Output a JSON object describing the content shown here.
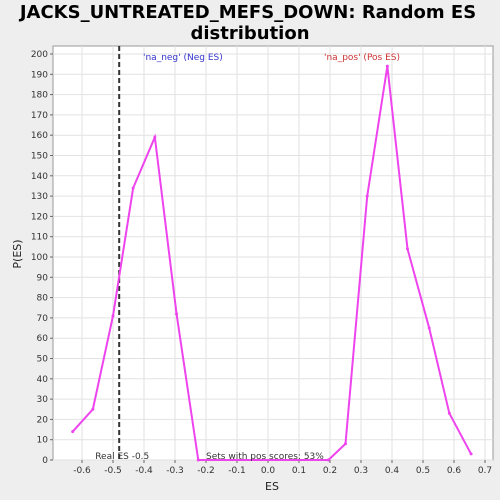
{
  "chart_data": {
    "type": "line",
    "title_line1": "JACKS_UNTREATED_MEFS_DOWN: Random ES",
    "title_line2": "distribution",
    "xlabel": "ES",
    "ylabel": "P(ES)",
    "xlim": [
      -0.7,
      0.7
    ],
    "ylim": [
      0,
      205
    ],
    "x_ticks": [
      -0.6,
      -0.5,
      -0.4,
      -0.3,
      -0.2,
      -0.1,
      0.0,
      0.1,
      0.2,
      0.3,
      0.4,
      0.5,
      0.6,
      0.7
    ],
    "y_ticks": [
      0,
      10,
      20,
      30,
      40,
      50,
      60,
      70,
      80,
      90,
      100,
      110,
      120,
      130,
      140,
      150,
      160,
      170,
      180,
      190,
      200
    ],
    "series_color": "#ee44ee",
    "series": [
      {
        "x": [
          -0.63,
          -0.565,
          -0.5,
          -0.435,
          -0.365,
          -0.295,
          -0.225,
          0.195,
          0.25,
          0.32,
          0.385,
          0.45,
          0.52,
          0.585,
          0.655
        ],
        "y": [
          14,
          25,
          71,
          134,
          159,
          72,
          0,
          0,
          8,
          130,
          194,
          104,
          65,
          23,
          3
        ]
      }
    ],
    "real_es": {
      "value": -0.48,
      "label": "Real ES -0.5"
    },
    "legend": {
      "neg": "'na_neg' (Neg ES)",
      "pos": "'na_pos' (Pos ES)"
    },
    "annotation": "Sets with pos scores: 53%"
  }
}
